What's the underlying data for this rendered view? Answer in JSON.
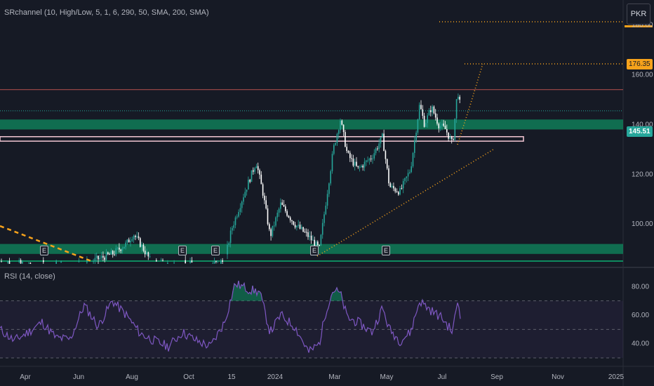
{
  "indicators": {
    "srchannel": "SRchannel (10, High/Low, 5, 1, 6, 290, 50, SMA, 200, SMA)",
    "rsi": "RSI (14, close)"
  },
  "currency": "PKR",
  "colors": {
    "background": "#161a25",
    "up_candle": "#26a69a",
    "down_candle": "#ffffff",
    "support_zone": "#0f8a5f",
    "resistance_line": "#a44a4a",
    "projection": "#f7a21b",
    "rsi_line": "#7e57c2",
    "current_price": "#26a69a"
  },
  "price_axis": {
    "ticks": [
      "180.00",
      "160.00",
      "140.00",
      "120.00",
      "100.00"
    ]
  },
  "price_tags": {
    "last": "145.51",
    "target": "176.35"
  },
  "rsi_axis": {
    "ticks": [
      "80.00",
      "60.00",
      "40.00"
    ]
  },
  "time_axis": {
    "ticks": [
      "Apr",
      "Jun",
      "Aug",
      "Oct",
      "15",
      "2024",
      "Mar",
      "May",
      "Jul",
      "Sep",
      "Nov",
      "2025"
    ]
  },
  "earnings_markers": [
    "E",
    "E",
    "E",
    "E",
    "E"
  ],
  "chart_data": {
    "type": "candlestick",
    "price_ylim": [
      84,
      190
    ],
    "last_price": 145.51,
    "target_price": 176.35,
    "levels": [
      {
        "name": "support zone 1",
        "low": 138.0,
        "high": 142.0
      },
      {
        "name": "support zone 2",
        "low": 88.0,
        "high": 92.0
      },
      {
        "name": "resistance line",
        "price": 154.0
      },
      {
        "name": "pink box level",
        "low": 133.3,
        "high": 135.1
      }
    ],
    "price_path": [
      [
        0,
        85
      ],
      [
        30,
        84
      ],
      [
        60,
        84
      ],
      [
        100,
        84
      ],
      [
        130,
        85
      ],
      [
        160,
        88
      ],
      [
        180,
        92
      ],
      [
        190,
        96
      ],
      [
        200,
        92
      ],
      [
        215,
        85
      ],
      [
        240,
        84
      ],
      [
        270,
        84
      ],
      [
        300,
        84
      ],
      [
        320,
        85
      ],
      [
        330,
        98
      ],
      [
        345,
        110
      ],
      [
        365,
        125
      ],
      [
        375,
        112
      ],
      [
        385,
        95
      ],
      [
        400,
        108
      ],
      [
        420,
        100
      ],
      [
        440,
        95
      ],
      [
        455,
        90
      ],
      [
        465,
        110
      ],
      [
        475,
        130
      ],
      [
        485,
        142
      ],
      [
        495,
        128
      ],
      [
        510,
        122
      ],
      [
        530,
        127
      ],
      [
        545,
        135
      ],
      [
        555,
        115
      ],
      [
        570,
        113
      ],
      [
        585,
        122
      ],
      [
        598,
        148
      ],
      [
        605,
        140
      ],
      [
        615,
        147
      ],
      [
        625,
        140
      ],
      [
        635,
        138
      ],
      [
        645,
        132
      ],
      [
        652,
        154
      ],
      [
        657,
        145.5
      ]
    ],
    "rsi_ylim": [
      30,
      90
    ],
    "rsi_levels": [
      70,
      50,
      30
    ],
    "rsi_series": [
      [
        0,
        50
      ],
      [
        20,
        42
      ],
      [
        40,
        48
      ],
      [
        60,
        55
      ],
      [
        80,
        44
      ],
      [
        100,
        43
      ],
      [
        120,
        67
      ],
      [
        140,
        52
      ],
      [
        160,
        70
      ],
      [
        180,
        60
      ],
      [
        200,
        47
      ],
      [
        220,
        42
      ],
      [
        240,
        38
      ],
      [
        260,
        48
      ],
      [
        280,
        42
      ],
      [
        300,
        38
      ],
      [
        320,
        55
      ],
      [
        335,
        82
      ],
      [
        355,
        78
      ],
      [
        370,
        76
      ],
      [
        385,
        48
      ],
      [
        400,
        60
      ],
      [
        420,
        52
      ],
      [
        440,
        34
      ],
      [
        455,
        40
      ],
      [
        465,
        64
      ],
      [
        475,
        78
      ],
      [
        485,
        75
      ],
      [
        495,
        58
      ],
      [
        510,
        55
      ],
      [
        530,
        48
      ],
      [
        545,
        65
      ],
      [
        555,
        50
      ],
      [
        570,
        42
      ],
      [
        585,
        48
      ],
      [
        598,
        70
      ],
      [
        615,
        63
      ],
      [
        630,
        58
      ],
      [
        645,
        48
      ],
      [
        652,
        70
      ],
      [
        657,
        58
      ]
    ]
  }
}
